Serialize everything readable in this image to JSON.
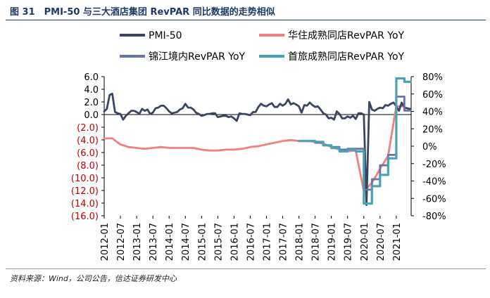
{
  "figure_title": "图 31　PMI-50 与三大酒店集团 RevPAR 同比数据的走势相似",
  "source_note": "资料来源：Wind，公司公告，信达证券研发中心",
  "colors": {
    "pmi": "#3b4461",
    "huazhu": "#f08080",
    "jinjiang": "#6a73a8",
    "shoulv": "#4aa3b5",
    "left_axis_negative": "#c00000",
    "axis_text": "#000000"
  },
  "chart_data": {
    "type": "line",
    "left_axis": {
      "ticks": [
        "6.0",
        "4.0",
        "2.0",
        "0.0",
        "(2.0)",
        "(4.0)",
        "(6.0)",
        "(8.0)",
        "(10.0)",
        "(12.0)",
        "(14.0)",
        "(16.0)"
      ],
      "tick_values": [
        6,
        4,
        2,
        0,
        -2,
        -4,
        -6,
        -8,
        -10,
        -12,
        -14,
        -16
      ],
      "ylim": [
        -16,
        6
      ]
    },
    "right_axis": {
      "ticks": [
        "80%",
        "60%",
        "40%",
        "20%",
        "0%",
        "-20%",
        "-40%",
        "-60%",
        "-80%"
      ],
      "tick_values": [
        80,
        60,
        40,
        20,
        0,
        -20,
        -40,
        -60,
        -80
      ],
      "ylim": [
        -80,
        80
      ]
    },
    "x_ticks": [
      "2012-01",
      "2012-07",
      "2013-01",
      "2013-07",
      "2014-01",
      "2014-07",
      "2015-01",
      "2015-07",
      "2016-01",
      "2016-07",
      "2017-01",
      "2017-07",
      "2018-01",
      "2018-07",
      "2019-01",
      "2019-07",
      "2020-01",
      "2020-07",
      "2021-01"
    ],
    "legend": [
      "PMI-50",
      "华住成熟同店RevPAR YoY",
      "锦江境内RevPAR YoY",
      "首旅成熟同店RevPAR YoY"
    ],
    "legend_position": "top",
    "series": [
      {
        "name": "PMI-50",
        "axis": "left",
        "x": [
          "2012-01",
          "2012-02",
          "2012-03",
          "2012-04",
          "2012-05",
          "2012-06",
          "2012-07",
          "2012-08",
          "2012-09",
          "2012-10",
          "2012-11",
          "2012-12",
          "2013-01",
          "2013-02",
          "2013-03",
          "2013-04",
          "2013-05",
          "2013-06",
          "2013-07",
          "2013-08",
          "2013-09",
          "2013-10",
          "2013-11",
          "2013-12",
          "2014-01",
          "2014-02",
          "2014-03",
          "2014-04",
          "2014-05",
          "2014-06",
          "2014-07",
          "2014-08",
          "2014-09",
          "2014-10",
          "2014-11",
          "2014-12",
          "2015-01",
          "2015-02",
          "2015-03",
          "2015-04",
          "2015-05",
          "2015-06",
          "2015-07",
          "2015-08",
          "2015-09",
          "2015-10",
          "2015-11",
          "2015-12",
          "2016-01",
          "2016-02",
          "2016-03",
          "2016-04",
          "2016-05",
          "2016-06",
          "2016-07",
          "2016-08",
          "2016-09",
          "2016-10",
          "2016-11",
          "2016-12",
          "2017-01",
          "2017-02",
          "2017-03",
          "2017-04",
          "2017-05",
          "2017-06",
          "2017-07",
          "2017-08",
          "2017-09",
          "2017-10",
          "2017-11",
          "2017-12",
          "2018-01",
          "2018-02",
          "2018-03",
          "2018-04",
          "2018-05",
          "2018-06",
          "2018-07",
          "2018-08",
          "2018-09",
          "2018-10",
          "2018-11",
          "2018-12",
          "2019-01",
          "2019-02",
          "2019-03",
          "2019-04",
          "2019-05",
          "2019-06",
          "2019-07",
          "2019-08",
          "2019-09",
          "2019-10",
          "2019-11",
          "2019-12",
          "2020-01",
          "2020-02",
          "2020-03",
          "2020-04",
          "2020-05",
          "2020-06",
          "2020-07",
          "2020-08",
          "2020-09",
          "2020-10",
          "2020-11",
          "2020-12",
          "2021-01",
          "2021-02",
          "2021-03",
          "2021-04",
          "2021-05",
          "2021-06"
        ],
        "values": [
          0.5,
          0.9,
          3.1,
          3.3,
          0.4,
          0.2,
          0.1,
          -0.8,
          -0.2,
          0.2,
          0.6,
          0.6,
          0.4,
          0.1,
          0.9,
          0.6,
          0.8,
          0.1,
          0.3,
          1.0,
          1.1,
          1.4,
          1.4,
          1.0,
          0.5,
          0.2,
          0.3,
          0.4,
          0.8,
          1.0,
          1.7,
          1.1,
          1.1,
          0.8,
          0.3,
          0.1,
          -0.2,
          -0.1,
          0.1,
          0.1,
          0.2,
          0.2,
          -0.4,
          -0.3,
          -0.2,
          -0.2,
          -0.4,
          -0.3,
          -0.6,
          -1.0,
          0.2,
          0.1,
          0.1,
          0.0,
          -0.1,
          0.4,
          0.4,
          1.2,
          1.7,
          1.4,
          1.3,
          1.6,
          1.8,
          1.2,
          1.2,
          1.7,
          1.4,
          1.7,
          2.4,
          1.6,
          1.8,
          1.6,
          1.3,
          0.3,
          1.5,
          1.4,
          1.9,
          1.5,
          1.2,
          1.3,
          0.8,
          0.2,
          0.0,
          -0.6,
          -0.5,
          -0.8,
          0.5,
          0.1,
          -0.6,
          -0.6,
          -0.3,
          -0.5,
          -0.2,
          -0.7,
          0.2,
          0.2,
          0.0,
          -14.3,
          2.0,
          0.8,
          0.6,
          0.9,
          1.1,
          1.0,
          1.5,
          1.4,
          1.7,
          1.9,
          1.3,
          0.6,
          1.9,
          1.1,
          1.0,
          0.9
        ]
      },
      {
        "name": "华住成熟同店RevPAR YoY",
        "axis": "right",
        "x": [
          "2012-01",
          "2012-04",
          "2012-07",
          "2012-10",
          "2013-01",
          "2013-04",
          "2013-07",
          "2013-10",
          "2014-01",
          "2014-04",
          "2014-07",
          "2014-10",
          "2015-01",
          "2015-04",
          "2015-07",
          "2015-10",
          "2016-01",
          "2016-04",
          "2016-07",
          "2016-10",
          "2017-01",
          "2017-04",
          "2017-07",
          "2017-10",
          "2018-01",
          "2018-04",
          "2018-07",
          "2018-10",
          "2019-01",
          "2019-04",
          "2019-07",
          "2019-10",
          "2020-01",
          "2020-04",
          "2020-07",
          "2020-10",
          "2021-01",
          "2021-04"
        ],
        "values": [
          9,
          9,
          2,
          -1,
          -2,
          -3,
          -2,
          -1,
          -2,
          -2,
          -2,
          -2,
          -4,
          -5,
          -5,
          -4,
          -4,
          -3,
          -1,
          0,
          2,
          4,
          6,
          7,
          6,
          6,
          5,
          3,
          -1,
          -4,
          -6,
          -5,
          -52,
          -42,
          -26,
          -11,
          46,
          46
        ]
      },
      {
        "name": "锦江境内RevPAR YoY",
        "axis": "right",
        "x": [
          "2018-01",
          "2018-04",
          "2018-07",
          "2018-10",
          "2019-01",
          "2019-04",
          "2019-07",
          "2019-10",
          "2020-01",
          "2020-04",
          "2020-07",
          "2020-10",
          "2021-01",
          "2021-04"
        ],
        "values": [
          6,
          6,
          4,
          1,
          -1,
          -4,
          -3,
          -3,
          -50,
          -38,
          -22,
          -10,
          57,
          41
        ],
        "step": true
      },
      {
        "name": "首旅成熟同店RevPAR YoY",
        "axis": "right",
        "x": [
          "2018-01",
          "2018-04",
          "2018-07",
          "2018-10",
          "2019-01",
          "2019-04",
          "2019-07",
          "2019-10",
          "2020-01",
          "2020-04",
          "2020-07",
          "2020-10",
          "2021-01",
          "2021-04"
        ],
        "values": [
          6,
          6,
          5,
          1,
          -2,
          -6,
          -4,
          -6,
          -66,
          -46,
          -33,
          -14,
          78,
          74
        ],
        "step": true
      }
    ]
  }
}
